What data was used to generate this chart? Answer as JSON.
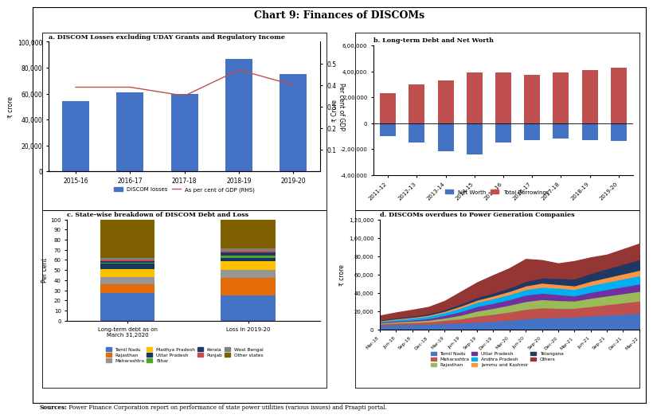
{
  "title": "Chart 9: Finances of DISCOMs",
  "panel_a": {
    "title": "a. DISCOM Losses excluding UDAY Grants and Regulatory Income",
    "years": [
      "2015-16",
      "2016-17",
      "2017-18",
      "2018-19",
      "2019-20"
    ],
    "bar_values": [
      54000,
      61000,
      60000,
      87000,
      75000
    ],
    "line_values": [
      0.39,
      0.39,
      0.35,
      0.47,
      0.4
    ],
    "bar_color": "#4472C4",
    "line_color": "#C0504D",
    "ylabel_left": "₹ crore",
    "ylabel_right": "Per cent of GDP",
    "ylim_left": [
      0,
      100000
    ],
    "ylim_right": [
      0.0,
      0.6
    ],
    "yticks_left": [
      0,
      20000,
      40000,
      60000,
      80000,
      100000
    ],
    "yticks_right": [
      0.1,
      0.2,
      0.3,
      0.4,
      0.5
    ],
    "legend_bar": "DISCOM losses",
    "legend_line": "As per cent of GDP (RHS)"
  },
  "panel_b": {
    "title": "b. Long-term Debt and Net Worth",
    "years": [
      "2011-12",
      "2012-13",
      "2013-14",
      "2014-15",
      "2015-16",
      "2016-17",
      "2017-18",
      "2018-19",
      "2019-20"
    ],
    "net_worth": [
      -100000,
      -150000,
      -220000,
      -240000,
      -150000,
      -130000,
      -120000,
      -130000,
      -140000
    ],
    "total_borrowings": [
      230000,
      300000,
      330000,
      390000,
      390000,
      370000,
      390000,
      410000,
      430000
    ],
    "net_worth_color": "#4472C4",
    "borrowings_color": "#C0504D",
    "ylabel": "₹ Crore",
    "ylim": [
      -400000,
      600000
    ],
    "yticks": [
      -400000,
      -200000,
      0,
      200000,
      400000,
      600000
    ],
    "yticklabels": [
      "-4,00,000",
      "-2,00,000",
      "0",
      "2,00,000",
      "4,00,000",
      "6,00,000"
    ],
    "legend_nw": "Net Worth",
    "legend_tb": "Total Borrowings"
  },
  "panel_c": {
    "title": "c. State-wise breakdown of DISCOM Debt and Loss",
    "categories": [
      "Long-term debt as on\nMarch 31,2020",
      "Loss in 2019-20"
    ],
    "states": [
      "Tamil Nadu",
      "Rajasthan",
      "Maharashtra",
      "Madhya Pradesh",
      "Uttar Pradesh",
      "Bihar",
      "Kerala",
      "Punjab",
      "West Bengal",
      "Other states"
    ],
    "debt_values": [
      27,
      9,
      7,
      8,
      5,
      1,
      2,
      1,
      2,
      38
    ],
    "loss_values": [
      25,
      17,
      8,
      9,
      3,
      2,
      3,
      2,
      2,
      29
    ],
    "colors": [
      "#4472C4",
      "#E36C09",
      "#969696",
      "#FFC000",
      "#17375E",
      "#4EA72A",
      "#1F3864",
      "#C0504D",
      "#808080",
      "#7F6000"
    ],
    "ylabel": "Per cent"
  },
  "panel_d": {
    "title": "d. DISCOMs overdues to Power Generation Companies",
    "x_labels": [
      "Mar-18",
      "Jun-18",
      "Sep-18",
      "Dec-18",
      "Mar-19",
      "Jun-19",
      "Sep-19",
      "Dec-19",
      "Mar-20",
      "Jun-20",
      "Sep-20",
      "Dec-20",
      "Mar-21",
      "Jun-21",
      "Sep-21",
      "Dec-21",
      "Mar-22"
    ],
    "states": [
      "Tamil Nadu",
      "Maharashtra",
      "Rajasthan",
      "Uttar Pradesh",
      "Andhra Pradesh",
      "Jammu and Kashmir",
      "Telangana",
      "Others"
    ],
    "colors": [
      "#4472C4",
      "#C0504D",
      "#9BBB59",
      "#7030A0",
      "#00B0F0",
      "#F79646",
      "#1F3864",
      "#943634"
    ],
    "data": {
      "Tamil Nadu": [
        5000,
        5500,
        5800,
        6200,
        7000,
        7500,
        8500,
        9500,
        10500,
        12000,
        13000,
        13500,
        14000,
        15000,
        16000,
        17000,
        18000
      ],
      "Maharashtra": [
        1500,
        2000,
        2200,
        2500,
        3500,
        4500,
        6500,
        7500,
        9000,
        10500,
        11000,
        10000,
        9500,
        10500,
        11500,
        12500,
        13500
      ],
      "Rajasthan": [
        1000,
        1200,
        1500,
        1800,
        2500,
        4000,
        5500,
        6500,
        7500,
        8500,
        9000,
        8500,
        8000,
        9000,
        9500,
        10000,
        10500
      ],
      "Uttar Pradesh": [
        800,
        1000,
        1200,
        1800,
        2800,
        4000,
        5000,
        5500,
        6000,
        7000,
        7000,
        6500,
        5500,
        6500,
        7000,
        7500,
        8000
      ],
      "Andhra Pradesh": [
        1000,
        1500,
        2000,
        2500,
        3000,
        4000,
        4500,
        5000,
        5500,
        6000,
        6500,
        7000,
        7000,
        7500,
        8000,
        8500,
        9000
      ],
      "Jammu and Kashmir": [
        500,
        800,
        1000,
        1200,
        1500,
        2000,
        2500,
        3000,
        3500,
        4000,
        4500,
        4000,
        4000,
        4500,
        5000,
        5500,
        6000
      ],
      "Telangana": [
        800,
        1000,
        1200,
        1500,
        1800,
        2200,
        2800,
        3200,
        3800,
        4800,
        5500,
        6500,
        7500,
        8500,
        9500,
        10500,
        11500
      ],
      "Others": [
        4500,
        5500,
        6500,
        7000,
        9000,
        13000,
        16000,
        19000,
        21000,
        24000,
        19000,
        16000,
        19000,
        17000,
        15000,
        16000,
        17000
      ]
    },
    "ylabel": "₹ crore",
    "ylim": [
      0,
      120000
    ],
    "yticks": [
      0,
      20000,
      40000,
      60000,
      80000,
      100000,
      120000
    ],
    "yticklabels": [
      "0",
      "20,000",
      "40,000",
      "60,000",
      "80,000",
      "1,00,000",
      "1,20,000"
    ]
  },
  "source_bold": "Sources:",
  "source_rest": " Power Finance Corporation report on performance of state power utilities (various issues) and Praapti portal.",
  "bg_color": "#FFFFFF"
}
